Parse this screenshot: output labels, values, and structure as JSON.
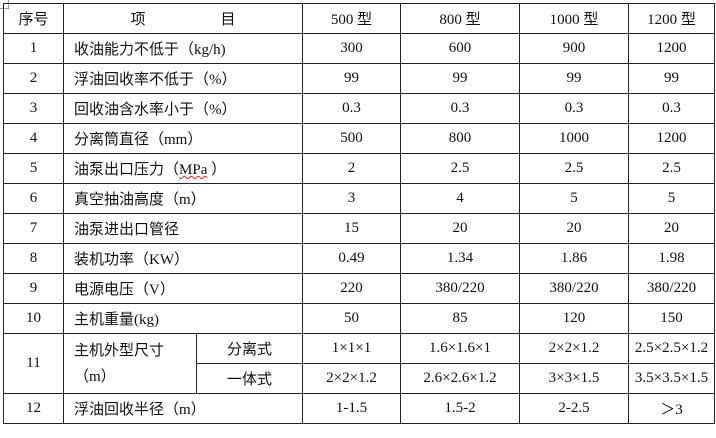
{
  "header": {
    "no": "序号",
    "item": "项　　　　　目",
    "models": [
      "500 型",
      "800 型",
      "1000 型",
      "1200 型"
    ]
  },
  "rows": [
    {
      "no": "1",
      "item": "收油能力不低于（kg/h)",
      "values": [
        "300",
        "600",
        "900",
        "1200"
      ]
    },
    {
      "no": "2",
      "item": "浮油回收率不低于（%）",
      "values": [
        "99",
        "99",
        "99",
        "99"
      ]
    },
    {
      "no": "3",
      "item": "回收油含水率小于（%）",
      "values": [
        "0.3",
        "0.3",
        "0.3",
        "0.3"
      ]
    },
    {
      "no": "4",
      "item": "分离筒直径（mm）",
      "values": [
        "500",
        "800",
        "1000",
        "1200"
      ]
    },
    {
      "no": "5",
      "item_prefix": "油泵出口压力（",
      "item_unit": "MPa",
      "item_suffix": " ）",
      "values": [
        "2",
        "2.5",
        "2.5",
        "2.5"
      ]
    },
    {
      "no": "6",
      "item": "真空抽油高度（m）",
      "values": [
        "3",
        "4",
        "5",
        "5"
      ]
    },
    {
      "no": "7",
      "item": "油泵进出口管径",
      "values": [
        "15",
        "20",
        "20",
        "20"
      ]
    },
    {
      "no": "8",
      "item": "装机功率（KW）",
      "values": [
        "0.49",
        "1.34",
        "1.86",
        "1.98"
      ]
    },
    {
      "no": "9",
      "item": "电源电压（V）",
      "values": [
        "220",
        "380/220",
        "380/220",
        "380/220"
      ]
    },
    {
      "no": "10",
      "item": "主机重量(kg)",
      "values": [
        "50",
        "85",
        "120",
        "150"
      ]
    }
  ],
  "row11": {
    "no": "11",
    "item_line1": "主机外型尺寸",
    "item_line2": "（m）",
    "sub": [
      {
        "label": "分离式",
        "values": [
          "1×1×1",
          "1.6×1.6×1",
          "2×2×1.2",
          "2.5×2.5×1.2"
        ]
      },
      {
        "label": "一体式",
        "values": [
          "2×2×1.2",
          "2.6×2.6×1.2",
          "3×3×1.5",
          "3.5×3.5×1.5"
        ]
      }
    ]
  },
  "row12": {
    "no": "12",
    "item": "浮油回收半径（m）",
    "values": [
      "1-1.5",
      "1.5-2",
      "2-2.5",
      "＞3"
    ]
  }
}
